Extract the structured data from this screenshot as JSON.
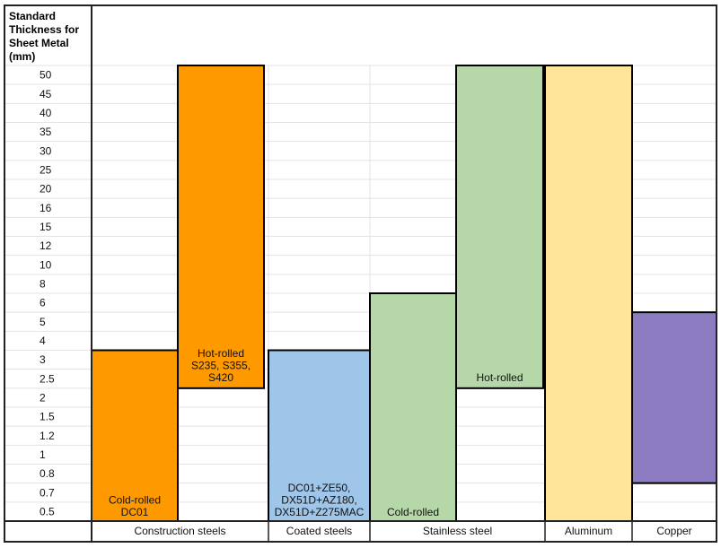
{
  "chart_data": {
    "type": "bar",
    "ylabel": [
      "Standard",
      "Thickness for",
      "Sheet Metal",
      "(mm)"
    ],
    "y_ticks": [
      "0.5",
      "0.7",
      "0.8",
      "1",
      "1.2",
      "1.5",
      "2",
      "2.5",
      "3",
      "4",
      "5",
      "6",
      "8",
      "10",
      "12",
      "15",
      "16",
      "20",
      "25",
      "30",
      "35",
      "40",
      "45",
      "50"
    ],
    "y_scale": "categorical (non-linear)",
    "grid": true,
    "categories": [
      "Construction steels",
      "Coated steels",
      "Stainless steel",
      "Aluminum",
      "Copper"
    ],
    "bars": [
      {
        "category": "Construction steels",
        "min": 0.5,
        "max": 3,
        "label": [
          "Cold-rolled",
          "DC01"
        ],
        "color": "#ff9900"
      },
      {
        "category": "Construction steels",
        "min": 2.5,
        "max": 50,
        "label": [
          "Hot-rolled",
          "S235, S355,",
          "S420"
        ],
        "color": "#ff9900"
      },
      {
        "category": "Coated steels",
        "min": 0.5,
        "max": 3,
        "label": [
          "DC01+ZE50,",
          "DX51D+AZ180,",
          "DX51D+Z275MAC"
        ],
        "color": "#9fc5e8"
      },
      {
        "category": "Stainless steel",
        "min": 0.5,
        "max": 6,
        "label": [
          "Cold-rolled"
        ],
        "color": "#b6d7a8"
      },
      {
        "category": "Stainless steel",
        "min": 2.5,
        "max": 50,
        "label": [
          "Hot-rolled"
        ],
        "color": "#b6d7a8"
      },
      {
        "category": "Aluminum",
        "min": 0.5,
        "max": 50,
        "label": [],
        "color": "#ffe599"
      },
      {
        "category": "Copper",
        "min": 0.8,
        "max": 5,
        "label": [],
        "color": "#8e7cc3"
      }
    ]
  }
}
